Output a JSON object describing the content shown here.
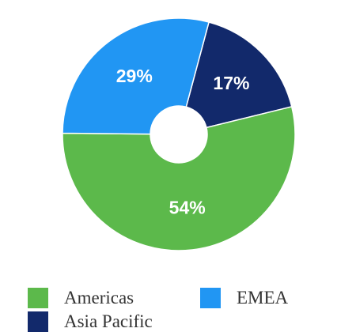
{
  "chart_data": {
    "type": "pie",
    "variant": "donut",
    "title": "",
    "categories": [
      "Americas",
      "EMEA",
      "Asia Pacific"
    ],
    "values": [
      54,
      29,
      17
    ],
    "value_labels": [
      "54%",
      "29%",
      "17%"
    ],
    "colors": [
      "#5cb94b",
      "#2196f3",
      "#12296b"
    ],
    "legend_position": "bottom"
  }
}
